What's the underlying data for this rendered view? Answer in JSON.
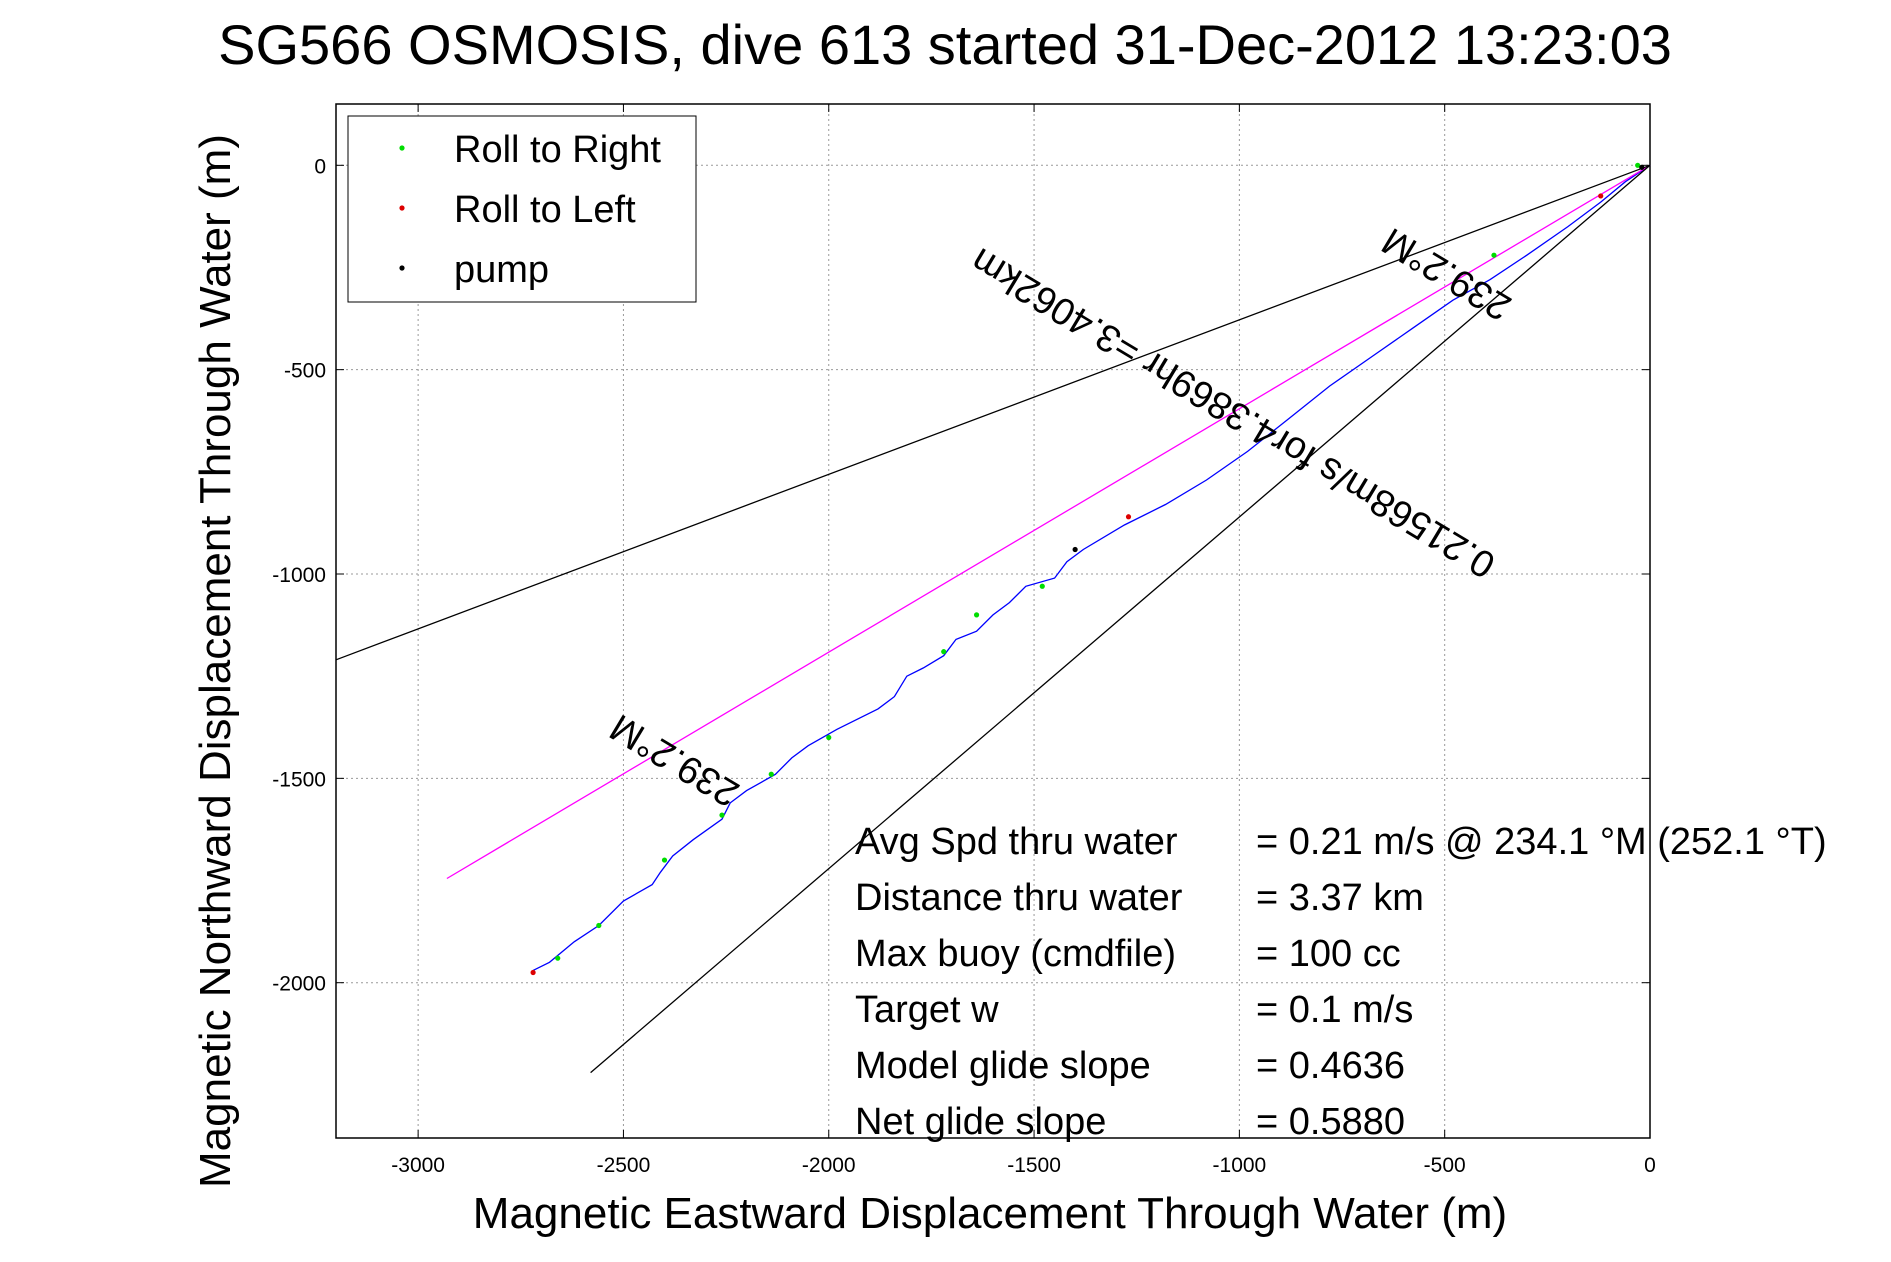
{
  "chart_data": {
    "type": "line",
    "title": "SG566 OSMOSIS, dive 613 started 31-Dec-2012 13:23:03",
    "xlabel": "Magnetic Eastward Displacement Through Water (m)",
    "ylabel": "Magnetic Northward Displacement Through Water (m)",
    "xlim": [
      -3200,
      0
    ],
    "ylim": [
      -2380,
      150
    ],
    "x_ticks": [
      -3000,
      -2500,
      -2000,
      -1500,
      -1000,
      -500,
      0
    ],
    "x_tick_labels": [
      "-3000",
      "-2500",
      "-2000",
      "-1500",
      "-1000",
      "-500",
      "0"
    ],
    "y_ticks": [
      0,
      -500,
      -1000,
      -1500,
      -2000
    ],
    "y_tick_labels": [
      "0",
      "-500",
      "-1000",
      "-1500",
      "-2000"
    ],
    "grid": true,
    "legend_position": "top-left",
    "legend": [
      {
        "label": "Roll to Right",
        "color": "#00dd00"
      },
      {
        "label": "Roll to Left",
        "color": "#dd0000"
      },
      {
        "label": "pump",
        "color": "#000000"
      }
    ],
    "series": [
      {
        "color": "#0000ff",
        "x": [
          0,
          -60,
          -120,
          -200,
          -300,
          -390,
          -480,
          -580,
          -680,
          -780,
          -880,
          -980,
          -1080,
          -1180,
          -1280,
          -1380,
          -1420,
          -1450,
          -1520,
          -1560,
          -1600,
          -1640,
          -1690,
          -1720,
          -1770,
          -1810,
          -1840,
          -1880,
          -1980,
          -2050,
          -2090,
          -2130,
          -2200,
          -2240,
          -2260,
          -2330,
          -2380,
          -2410,
          -2430,
          -2500,
          -2560,
          -2620,
          -2680,
          -2720
        ],
        "y": [
          0,
          -40,
          -90,
          -150,
          -220,
          -280,
          -330,
          -400,
          -470,
          -540,
          -620,
          -700,
          -770,
          -830,
          -880,
          -940,
          -970,
          -1010,
          -1030,
          -1070,
          -1100,
          -1140,
          -1160,
          -1200,
          -1230,
          -1250,
          -1300,
          -1330,
          -1380,
          -1420,
          -1450,
          -1490,
          -1530,
          -1560,
          -1600,
          -1650,
          -1690,
          -1730,
          -1760,
          -1800,
          -1860,
          -1900,
          -1950,
          -1970
        ]
      },
      {
        "color": "#ff00ff",
        "x": [
          0,
          -2930
        ],
        "y": [
          0,
          -1745
        ]
      },
      {
        "color": "#000000",
        "x": [
          0,
          -3200
        ],
        "y": [
          0,
          -1210
        ]
      },
      {
        "color": "#000000",
        "x": [
          0,
          -2580
        ],
        "y": [
          0,
          -2220
        ]
      }
    ],
    "points_right": {
      "x": [
        -30,
        -380,
        -1480,
        -1640,
        -1720,
        -2000,
        -2140,
        -2260,
        -2400,
        -2560,
        -2660
      ],
      "y": [
        0,
        -220,
        -1030,
        -1100,
        -1190,
        -1400,
        -1490,
        -1590,
        -1700,
        -1860,
        -1940
      ]
    },
    "points_left": {
      "x": [
        -120,
        -1270,
        -2720
      ],
      "y": [
        -75,
        -860,
        -1975
      ]
    },
    "points_pump": {
      "x": [
        -20,
        -1400
      ],
      "y": [
        -5,
        -940
      ]
    },
    "annotations": [
      {
        "text": "239.2°M",
        "x": -2360,
        "y": -1430,
        "rotate": 211
      },
      {
        "text": "239.2°M",
        "x": -480,
        "y": -240,
        "rotate": 211
      },
      {
        "text": "0.21568m/s for4.3869hr =3.4062km",
        "x": -1000,
        "y": -580,
        "rotate": 211
      }
    ]
  },
  "stats": [
    {
      "label": "Avg Spd thru water",
      "value": "=  0.21 m/s @ 234.1 °M (252.1 °T)"
    },
    {
      "label": "Distance thru water",
      "value": "=  3.37 km"
    },
    {
      "label": "Max buoy (cmdfile)",
      "value": "= 100 cc"
    },
    {
      "label": "Target w",
      "value": "= 0.1 m/s"
    },
    {
      "label": "Model glide slope",
      "value": "= 0.4636"
    },
    {
      "label": "Net glide slope",
      "value": "= 0.5880"
    }
  ]
}
